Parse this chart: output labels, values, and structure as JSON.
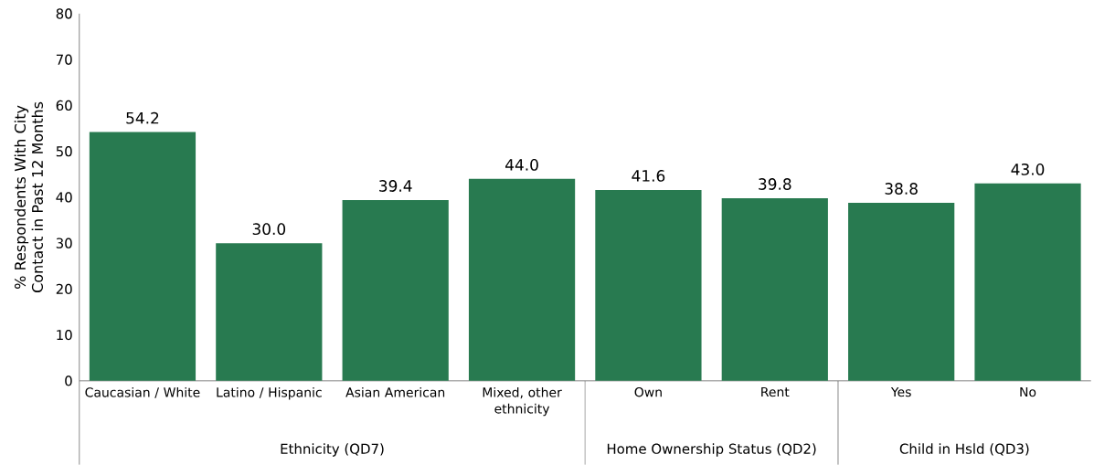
{
  "chart_data": {
    "type": "bar",
    "ylabel": "% Respondents With City Contact in Past 12 Months",
    "categories": [
      "Caucasian / White",
      "Latino / Hispanic",
      "Asian American",
      "Mixed, other ethnicity",
      "Own",
      "Rent",
      "Yes",
      "No"
    ],
    "values": [
      54.2,
      30.0,
      39.4,
      44.0,
      41.6,
      39.8,
      38.8,
      43.0
    ],
    "color": "#287a50",
    "ylim": [
      0,
      80
    ],
    "yticks": [
      0,
      10,
      20,
      30,
      40,
      50,
      60,
      70,
      80
    ],
    "value_labels": [
      "54.2",
      "30.0",
      "39.4",
      "44.0",
      "41.6",
      "39.8",
      "38.8",
      "43.0"
    ],
    "annotations": [
      "Ethnicity (QD7)",
      "Home Ownership Status (QD2)",
      "Child in Hsld (QD3)"
    ]
  }
}
